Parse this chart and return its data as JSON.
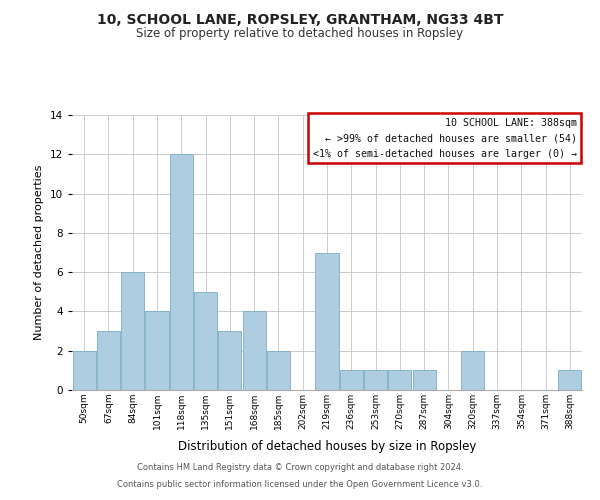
{
  "title": "10, SCHOOL LANE, ROPSLEY, GRANTHAM, NG33 4BT",
  "subtitle": "Size of property relative to detached houses in Ropsley",
  "xlabel": "Distribution of detached houses by size in Ropsley",
  "ylabel": "Number of detached properties",
  "bar_color": "#aecde0",
  "bin_labels": [
    "50sqm",
    "67sqm",
    "84sqm",
    "101sqm",
    "118sqm",
    "135sqm",
    "151sqm",
    "168sqm",
    "185sqm",
    "202sqm",
    "219sqm",
    "236sqm",
    "253sqm",
    "270sqm",
    "287sqm",
    "304sqm",
    "320sqm",
    "337sqm",
    "354sqm",
    "371sqm",
    "388sqm"
  ],
  "bar_heights": [
    2,
    3,
    6,
    4,
    12,
    5,
    3,
    4,
    2,
    0,
    7,
    1,
    1,
    1,
    1,
    0,
    2,
    0,
    0,
    0,
    1
  ],
  "ylim": [
    0,
    14
  ],
  "yticks": [
    0,
    2,
    4,
    6,
    8,
    10,
    12,
    14
  ],
  "legend_title": "10 SCHOOL LANE: 388sqm",
  "legend_line1": "← >99% of detached houses are smaller (54)",
  "legend_line2": "<1% of semi-detached houses are larger (0) →",
  "legend_box_facecolor": "#ffffff",
  "legend_box_edgecolor": "#cc0000",
  "footer_line1": "Contains HM Land Registry data © Crown copyright and database right 2024.",
  "footer_line2": "Contains public sector information licensed under the Open Government Licence v3.0.",
  "background_color": "#ffffff",
  "grid_color": "#cccccc"
}
